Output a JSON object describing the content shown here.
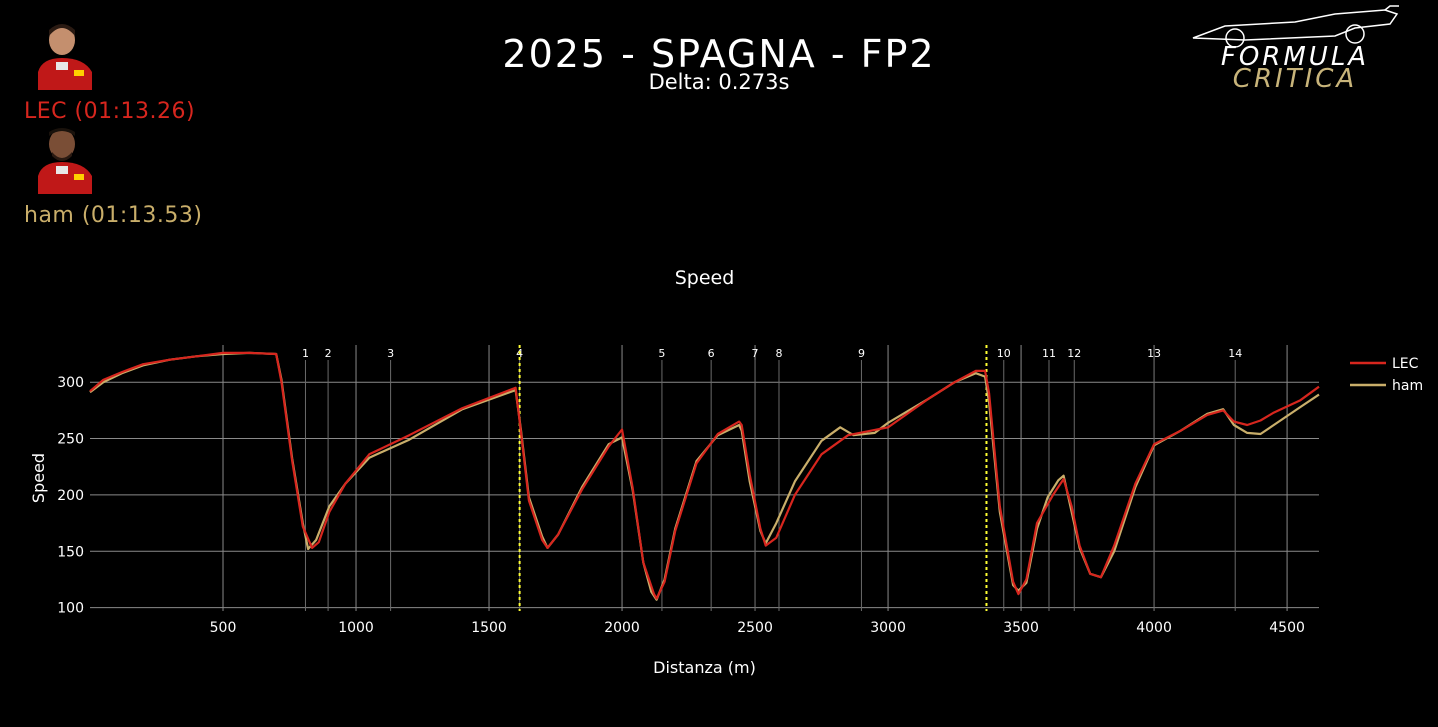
{
  "header": {
    "title": "2025 - SPAGNA - FP2",
    "subtitle": "Delta: 0.273s"
  },
  "drivers": [
    {
      "label": "LEC (01:13.26)",
      "color": "#d7261e"
    },
    {
      "label": "ham (01:13.53)",
      "color": "#c9ae6a"
    }
  ],
  "logo": {
    "line1": "FORMULA",
    "line2": "CRITICA"
  },
  "chart_data": {
    "type": "line",
    "title": "Speed",
    "xlabel": "Distanza (m)",
    "ylabel": "Speed",
    "xlim": [
      0,
      4620
    ],
    "ylim": [
      97,
      333
    ],
    "xticks": [
      500,
      1000,
      1500,
      2000,
      2500,
      3000,
      3500,
      4000,
      4500
    ],
    "yticks": [
      100,
      150,
      200,
      250,
      300
    ],
    "grid": true,
    "legend_position": "top-right",
    "corner_markers": [
      {
        "x": 810,
        "label": "1"
      },
      {
        "x": 895,
        "label": "2"
      },
      {
        "x": 1130,
        "label": "3"
      },
      {
        "x": 1615,
        "label": "4"
      },
      {
        "x": 2150,
        "label": "5"
      },
      {
        "x": 2335,
        "label": "6"
      },
      {
        "x": 2500,
        "label": "7"
      },
      {
        "x": 2590,
        "label": "8"
      },
      {
        "x": 2900,
        "label": "9"
      },
      {
        "x": 3435,
        "label": "10"
      },
      {
        "x": 3605,
        "label": "11"
      },
      {
        "x": 3700,
        "label": "12"
      },
      {
        "x": 4000,
        "label": "13"
      },
      {
        "x": 4305,
        "label": "14"
      }
    ],
    "sector_lines": [
      1615,
      3370
    ],
    "series": [
      {
        "name": "LEC",
        "color": "#d7261e",
        "x": [
          0,
          50,
          120,
          200,
          300,
          400,
          500,
          600,
          700,
          720,
          760,
          800,
          835,
          860,
          900,
          960,
          1050,
          1200,
          1400,
          1600,
          1620,
          1650,
          1700,
          1720,
          1760,
          1850,
          1950,
          2000,
          2040,
          2080,
          2120,
          2130,
          2160,
          2200,
          2280,
          2360,
          2440,
          2450,
          2480,
          2520,
          2540,
          2580,
          2650,
          2750,
          2850,
          3000,
          3150,
          3250,
          3330,
          3365,
          3380,
          3420,
          3470,
          3490,
          3520,
          3560,
          3620,
          3660,
          3690,
          3720,
          3760,
          3800,
          3850,
          3930,
          4000,
          4100,
          4200,
          4260,
          4300,
          4350,
          4400,
          4450,
          4550,
          4620
        ],
        "y": [
          292,
          302,
          309,
          316,
          320,
          323,
          326,
          326,
          325,
          300,
          230,
          172,
          153,
          158,
          185,
          210,
          236,
          253,
          277,
          295,
          256,
          195,
          160,
          153,
          165,
          205,
          243,
          258,
          206,
          140,
          112,
          108,
          123,
          168,
          228,
          254,
          265,
          262,
          218,
          170,
          155,
          162,
          200,
          236,
          253,
          260,
          285,
          300,
          310,
          310,
          290,
          190,
          123,
          112,
          125,
          175,
          200,
          214,
          190,
          155,
          130,
          127,
          155,
          210,
          245,
          257,
          271,
          275,
          265,
          262,
          266,
          273,
          284,
          296
        ]
      },
      {
        "name": "ham",
        "color": "#c9ae6a",
        "x": [
          0,
          50,
          120,
          200,
          300,
          400,
          500,
          600,
          700,
          720,
          760,
          800,
          820,
          850,
          880,
          900,
          960,
          1050,
          1200,
          1400,
          1600,
          1620,
          1650,
          1700,
          1720,
          1760,
          1850,
          1950,
          2000,
          2040,
          2080,
          2110,
          2130,
          2160,
          2200,
          2280,
          2360,
          2440,
          2450,
          2480,
          2520,
          2540,
          2580,
          2650,
          2750,
          2820,
          2870,
          2950,
          3000,
          3150,
          3250,
          3330,
          3365,
          3380,
          3420,
          3470,
          3490,
          3520,
          3560,
          3600,
          3640,
          3660,
          3690,
          3720,
          3760,
          3800,
          3850,
          3930,
          4000,
          4100,
          4200,
          4260,
          4300,
          4350,
          4400,
          4450,
          4550,
          4620
        ],
        "y": [
          291,
          300,
          308,
          315,
          320,
          323,
          325,
          326,
          325,
          302,
          232,
          175,
          152,
          160,
          178,
          190,
          210,
          233,
          249,
          276,
          293,
          258,
          198,
          163,
          153,
          165,
          207,
          245,
          251,
          204,
          140,
          114,
          107,
          125,
          170,
          230,
          253,
          262,
          257,
          212,
          168,
          157,
          175,
          212,
          248,
          260,
          253,
          255,
          264,
          285,
          300,
          308,
          305,
          282,
          185,
          120,
          115,
          122,
          170,
          198,
          213,
          217,
          185,
          153,
          130,
          127,
          150,
          207,
          244,
          257,
          272,
          276,
          262,
          255,
          254,
          262,
          278,
          289
        ]
      }
    ]
  }
}
